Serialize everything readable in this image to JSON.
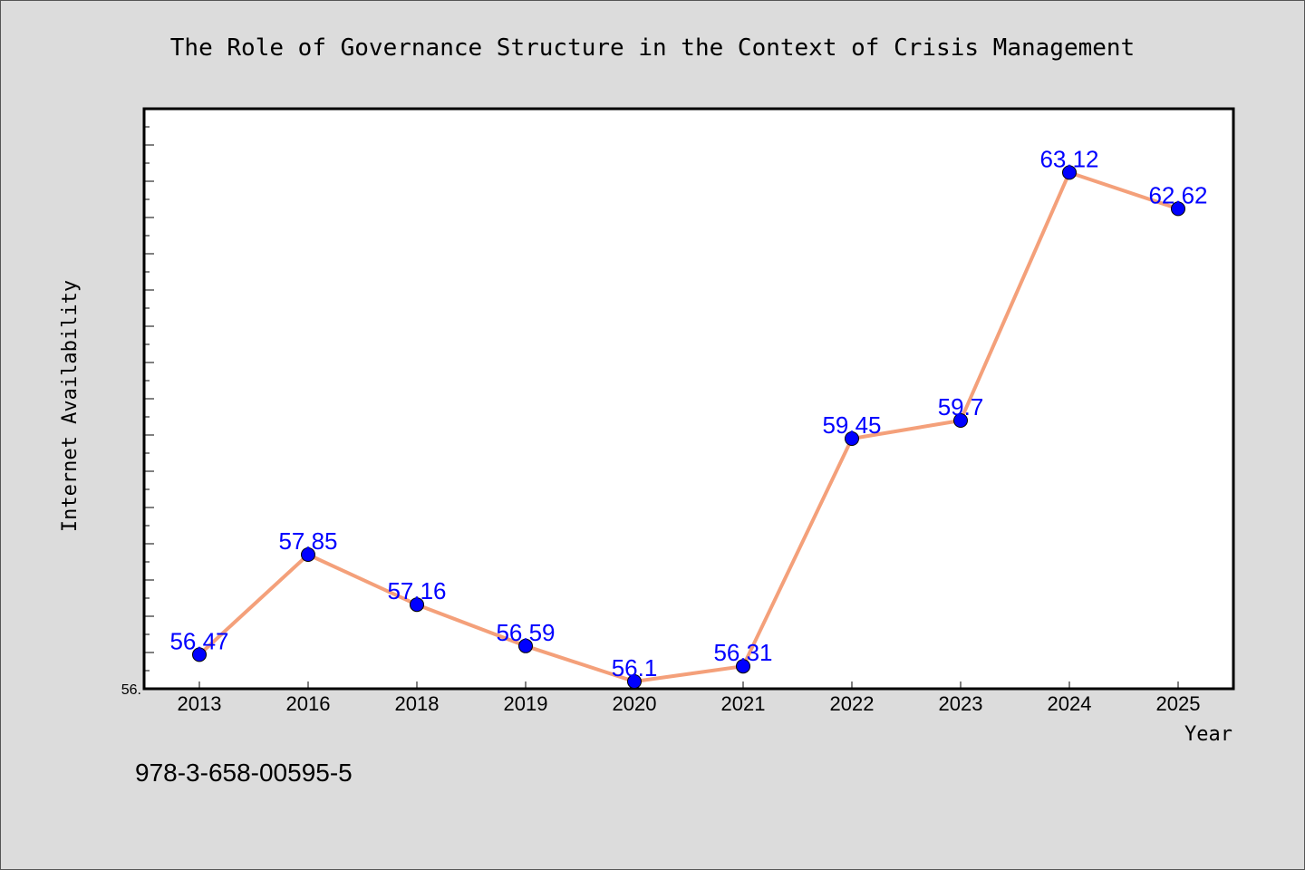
{
  "chart_data": {
    "type": "line",
    "title": "The Role of Governance Structure in the Context of Crisis Management",
    "xlabel": "Year",
    "ylabel": "Internet Availability",
    "categories": [
      "2013",
      "2016",
      "2018",
      "2019",
      "2020",
      "2021",
      "2022",
      "2023",
      "2024",
      "2025"
    ],
    "series": [
      {
        "values": [
          56.47,
          57.85,
          57.16,
          56.59,
          56.1,
          56.31,
          59.45,
          59.7,
          63.12,
          62.62
        ],
        "labels": [
          "56.47",
          "57.85",
          "57.16",
          "56.59",
          "56.1",
          "56.31",
          "59.45",
          "59.7",
          "63.12",
          "62.62"
        ]
      }
    ],
    "ylim": [
      56.0,
      64.0
    ],
    "ytick_labels": [
      "56."
    ],
    "grid": false,
    "line_color": "#f4a07a",
    "marker_color": "#0000ff",
    "label_color": "#0000ff"
  },
  "footer": {
    "isbn": "978-3-658-00595-5"
  }
}
